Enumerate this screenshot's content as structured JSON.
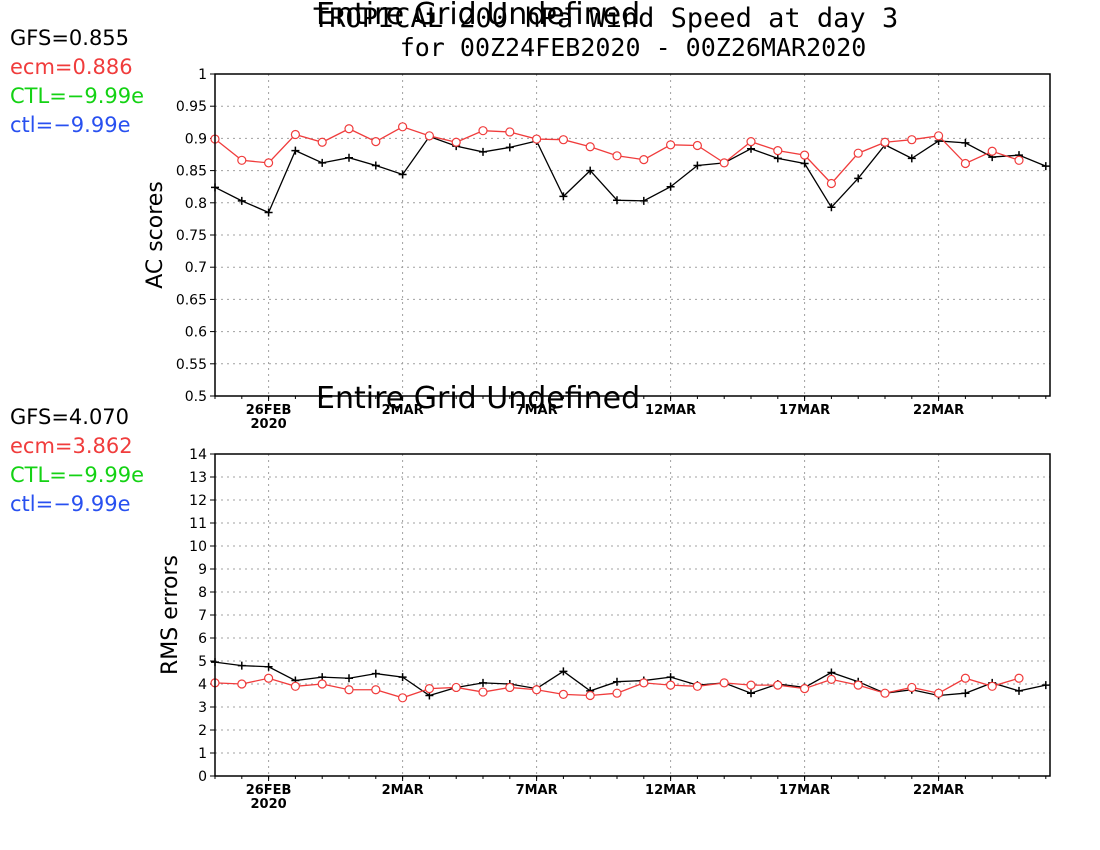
{
  "stats_top": {
    "gfs": {
      "text": "GFS=0.855",
      "color": "#000000"
    },
    "ecm": {
      "text": "ecm=0.886",
      "color": "#f03c3c"
    },
    "CTL": {
      "text": "CTL=−9.99e",
      "color": "#14d214"
    },
    "ctl": {
      "text": "ctl=−9.99e",
      "color": "#2850f0"
    }
  },
  "stats_bottom": {
    "gfs": {
      "text": "GFS=4.070",
      "color": "#000000"
    },
    "ecm": {
      "text": "ecm=3.862",
      "color": "#f03c3c"
    },
    "CTL": {
      "text": "CTL=−9.99e",
      "color": "#14d214"
    },
    "ctl": {
      "text": "ctl=−9.99e",
      "color": "#2850f0"
    }
  },
  "title": {
    "line1": "TROPICAL 200 hPa Wind Speed at day 3",
    "line2": "for 00Z24FEB2020 - 00Z26MAR2020",
    "overlay_top": "Entire Grid Undefined",
    "overlay_bottom": "Entire Grid Undefined"
  },
  "colors": {
    "gfs": "#000000",
    "ecm": "#f03c3c",
    "grid": "#a0a0a0"
  },
  "chart_data": [
    {
      "type": "line",
      "ylabel": "AC scores",
      "ylim": [
        0.5,
        1
      ],
      "yticks": [
        "0.5",
        "0.55",
        "0.6",
        "0.65",
        "0.7",
        "0.75",
        "0.8",
        "0.85",
        "0.9",
        "0.95",
        "1"
      ],
      "x": [
        "24FEB2020",
        "25FEB",
        "26FEB",
        "27FEB",
        "28FEB",
        "29FEB",
        "1MAR",
        "2MAR",
        "3MAR",
        "4MAR",
        "5MAR",
        "6MAR",
        "7MAR",
        "8MAR",
        "9MAR",
        "10MAR",
        "11MAR",
        "12MAR",
        "13MAR",
        "14MAR",
        "15MAR",
        "16MAR",
        "17MAR",
        "18MAR",
        "19MAR",
        "20MAR",
        "21MAR",
        "22MAR",
        "23MAR",
        "24MAR",
        "25MAR",
        "26MAR"
      ],
      "xtick_labels": [
        {
          "label": "26FEB",
          "sub": "2020",
          "x": "26FEB"
        },
        {
          "label": "2MAR",
          "sub": "",
          "x": "2MAR"
        },
        {
          "label": "7MAR",
          "sub": "",
          "x": "7MAR"
        },
        {
          "label": "12MAR",
          "sub": "",
          "x": "12MAR"
        },
        {
          "label": "17MAR",
          "sub": "",
          "x": "17MAR"
        },
        {
          "label": "22MAR",
          "sub": "",
          "x": "22MAR"
        }
      ],
      "grid": true,
      "series": [
        {
          "name": "GFS",
          "marker": "plus",
          "values": [
            0.824,
            0.803,
            0.785,
            0.881,
            0.862,
            0.87,
            0.858,
            0.844,
            0.903,
            0.888,
            0.879,
            0.886,
            0.896,
            0.81,
            0.85,
            0.804,
            0.803,
            0.825,
            0.858,
            0.862,
            0.884,
            0.869,
            0.861,
            0.793,
            0.838,
            0.89,
            0.869,
            0.896,
            0.893,
            0.871,
            0.874,
            0.857
          ]
        },
        {
          "name": "ecm",
          "marker": "circle",
          "values": [
            0.899,
            0.866,
            0.862,
            0.906,
            0.894,
            0.915,
            0.895,
            0.918,
            0.904,
            0.894,
            0.912,
            0.91,
            0.899,
            0.898,
            0.887,
            0.873,
            0.867,
            0.89,
            0.889,
            0.862,
            0.895,
            0.881,
            0.874,
            0.83,
            0.877,
            0.894,
            0.898,
            0.904,
            0.861,
            0.88,
            0.866,
            null
          ]
        }
      ]
    },
    {
      "type": "line",
      "ylabel": "RMS errors",
      "ylim": [
        0,
        14
      ],
      "yticks": [
        "0",
        "1",
        "2",
        "3",
        "4",
        "5",
        "6",
        "7",
        "8",
        "9",
        "10",
        "11",
        "12",
        "13",
        "14"
      ],
      "x": [
        "24FEB2020",
        "25FEB",
        "26FEB",
        "27FEB",
        "28FEB",
        "29FEB",
        "1MAR",
        "2MAR",
        "3MAR",
        "4MAR",
        "5MAR",
        "6MAR",
        "7MAR",
        "8MAR",
        "9MAR",
        "10MAR",
        "11MAR",
        "12MAR",
        "13MAR",
        "14MAR",
        "15MAR",
        "16MAR",
        "17MAR",
        "18MAR",
        "19MAR",
        "20MAR",
        "21MAR",
        "22MAR",
        "23MAR",
        "24MAR",
        "25MAR",
        "26MAR"
      ],
      "xtick_labels": [
        {
          "label": "26FEB",
          "sub": "2020",
          "x": "26FEB"
        },
        {
          "label": "2MAR",
          "sub": "",
          "x": "2MAR"
        },
        {
          "label": "7MAR",
          "sub": "",
          "x": "7MAR"
        },
        {
          "label": "12MAR",
          "sub": "",
          "x": "12MAR"
        },
        {
          "label": "17MAR",
          "sub": "",
          "x": "17MAR"
        },
        {
          "label": "22MAR",
          "sub": "",
          "x": "22MAR"
        }
      ],
      "grid": true,
      "series": [
        {
          "name": "GFS",
          "marker": "plus",
          "values": [
            4.95,
            4.8,
            4.75,
            4.15,
            4.3,
            4.25,
            4.45,
            4.3,
            3.5,
            3.85,
            4.05,
            4.0,
            3.8,
            4.55,
            3.7,
            4.1,
            4.15,
            4.3,
            3.95,
            4.05,
            3.6,
            4.0,
            3.85,
            4.5,
            4.1,
            3.6,
            3.75,
            3.5,
            3.6,
            4.05,
            3.7,
            3.95
          ]
        },
        {
          "name": "ecm",
          "marker": "circle",
          "values": [
            4.05,
            4.0,
            4.25,
            3.9,
            4.0,
            3.75,
            3.75,
            3.4,
            3.8,
            3.85,
            3.65,
            3.85,
            3.75,
            3.55,
            3.5,
            3.6,
            4.05,
            3.95,
            3.9,
            4.05,
            3.95,
            3.95,
            3.8,
            4.2,
            3.95,
            3.6,
            3.85,
            3.6,
            4.25,
            3.9,
            4.25,
            null
          ]
        }
      ]
    }
  ]
}
